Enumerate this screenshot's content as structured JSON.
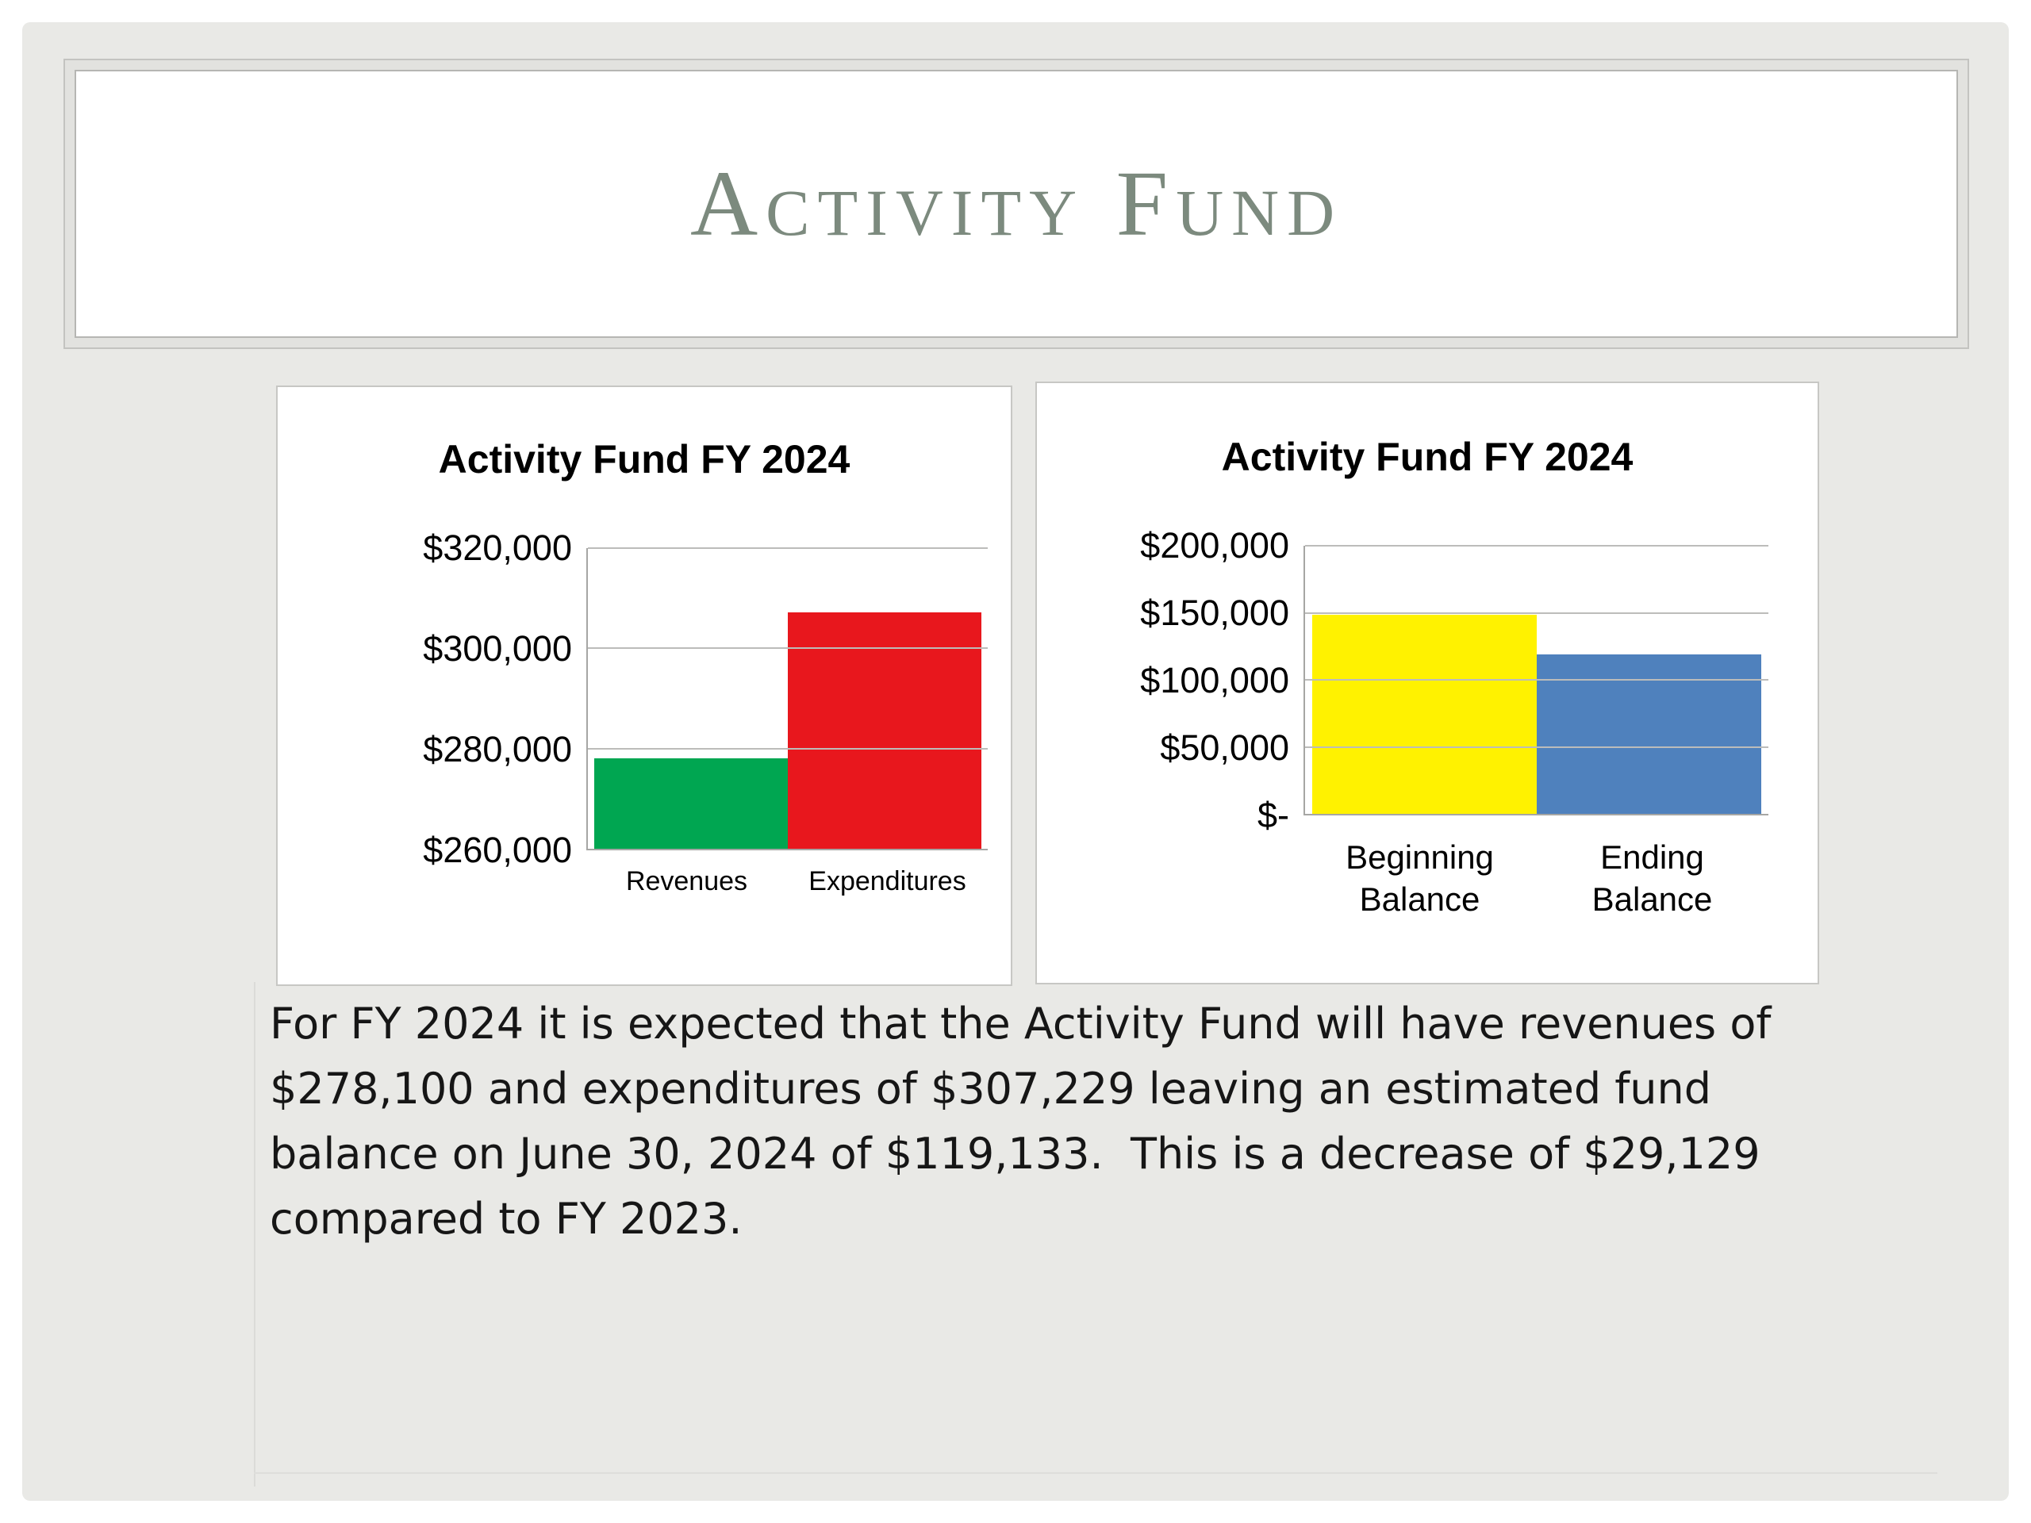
{
  "slide": {
    "title": "Activity Fund",
    "body_text": "For FY 2024 it is expected that the Activity Fund will have revenues of $278,100 and expenditures of $307,229 leaving an estimated fund balance on June 30, 2024 of $119,133.  This is a decrease of $29,129 compared to FY 2023."
  },
  "colors": {
    "title_text": "#7c8a7e",
    "revenues_bar": "#00a651",
    "expenditures_bar": "#e8171d",
    "beginning_balance_bar": "#fff200",
    "ending_balance_bar": "#4f81bd"
  },
  "chart_data": [
    {
      "type": "bar",
      "title": "Activity Fund FY 2024",
      "categories": [
        "Revenues",
        "Expenditures"
      ],
      "values": [
        278100,
        307229
      ],
      "colors": [
        "#00a651",
        "#e8171d"
      ],
      "ylim": [
        260000,
        320000
      ],
      "ytick_interval": 20000,
      "ytick_labels": [
        "$260,000",
        "$280,000",
        "$300,000",
        "$320,000"
      ],
      "grid": true,
      "legend": "none",
      "xlabel": "",
      "ylabel": ""
    },
    {
      "type": "bar",
      "title": "Activity Fund FY 2024",
      "categories": [
        "Beginning Balance",
        "Ending Balance"
      ],
      "values": [
        148262,
        119133
      ],
      "colors": [
        "#fff200",
        "#4f81bd"
      ],
      "ylim": [
        0,
        200000
      ],
      "ytick_interval": 50000,
      "ytick_labels": [
        "$-",
        "$50,000",
        "$100,000",
        "$150,000",
        "$200,000"
      ],
      "grid": true,
      "legend": "none",
      "xlabel": "",
      "ylabel": ""
    }
  ]
}
